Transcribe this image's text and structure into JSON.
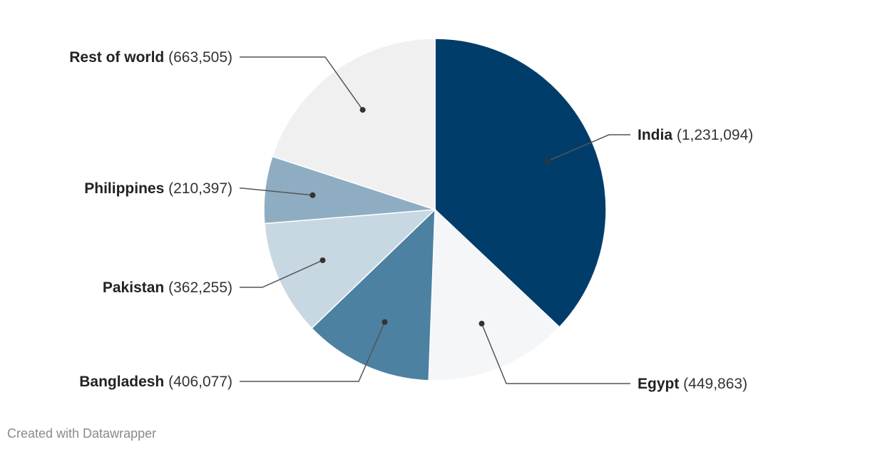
{
  "chart_data": {
    "type": "pie",
    "categories": [
      "India",
      "Egypt",
      "Bangladesh",
      "Pakistan",
      "Philippines",
      "Rest of world"
    ],
    "values": [
      1231094,
      449863,
      406077,
      362255,
      210397,
      663505
    ],
    "value_labels": [
      "(1,231,094)",
      "(449,863)",
      "(406,077)",
      "(362,255)",
      "(210,397)",
      "(663,505)"
    ],
    "colors": [
      "#003d6b",
      "#f4f6f8",
      "#4d81a2",
      "#c8d8e2",
      "#8fadc2",
      "#f0f0f0"
    ],
    "start_angle": "12 o'clock",
    "direction": "clockwise",
    "legend": "none (labels attached to slices with leader lines)"
  },
  "footer": {
    "credit": "Created with Datawrapper"
  }
}
